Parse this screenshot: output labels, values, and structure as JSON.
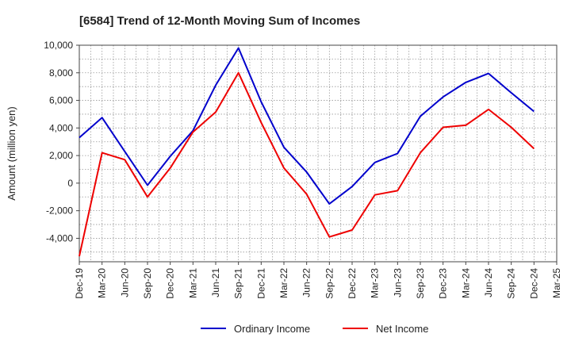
{
  "chart_data": {
    "type": "line",
    "title": "[6584]  Trend of 12-Month Moving Sum of Incomes",
    "ylabel": "Amount (million yen)",
    "xlabel": "",
    "categories": [
      "Dec-19",
      "Mar-20",
      "Jun-20",
      "Sep-20",
      "Dec-20",
      "Mar-21",
      "Jun-21",
      "Sep-21",
      "Dec-21",
      "Mar-22",
      "Jun-22",
      "Sep-22",
      "Dec-22",
      "Mar-23",
      "Jun-23",
      "Sep-23",
      "Dec-23",
      "Mar-24",
      "Jun-24",
      "Sep-24",
      "Dec-24",
      "Mar-25"
    ],
    "ylim": [
      -5700,
      10000
    ],
    "yticks": [
      10000,
      8000,
      6000,
      4000,
      2000,
      0,
      -2000,
      -4000
    ],
    "ytick_labels": [
      "10,000",
      "8,000",
      "6,000",
      "4,000",
      "2,000",
      "0",
      "-2,000",
      "-4,000"
    ],
    "grid": true,
    "legend_position": "bottom",
    "series": [
      {
        "name": "Ordinary Income",
        "color": "#0000cc",
        "values": [
          3300,
          4750,
          2300,
          -150,
          1950,
          3800,
          7100,
          9800,
          5900,
          2600,
          800,
          -1500,
          -250,
          1500,
          2150,
          4850,
          6250,
          7300,
          7950,
          6550,
          5200,
          null
        ]
      },
      {
        "name": "Net Income",
        "color": "#ee0000",
        "values": [
          -5300,
          2200,
          1700,
          -1000,
          1100,
          3700,
          5150,
          8000,
          4400,
          1100,
          -800,
          -3900,
          -3400,
          -850,
          -550,
          2200,
          4050,
          4200,
          5350,
          4050,
          2500,
          null
        ]
      }
    ]
  }
}
